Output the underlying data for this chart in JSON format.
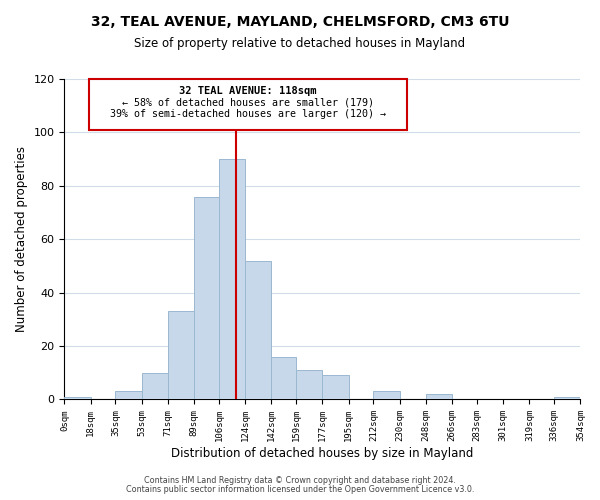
{
  "title": "32, TEAL AVENUE, MAYLAND, CHELMSFORD, CM3 6TU",
  "subtitle": "Size of property relative to detached houses in Mayland",
  "xlabel": "Distribution of detached houses by size in Mayland",
  "ylabel": "Number of detached properties",
  "bin_labels": [
    "0sqm",
    "18sqm",
    "35sqm",
    "53sqm",
    "71sqm",
    "89sqm",
    "106sqm",
    "124sqm",
    "142sqm",
    "159sqm",
    "177sqm",
    "195sqm",
    "212sqm",
    "230sqm",
    "248sqm",
    "266sqm",
    "283sqm",
    "301sqm",
    "319sqm",
    "336sqm",
    "354sqm"
  ],
  "bar_heights": [
    1,
    0,
    3,
    10,
    33,
    76,
    90,
    52,
    16,
    11,
    9,
    0,
    3,
    0,
    2,
    0,
    0,
    0,
    0,
    1
  ],
  "bar_color": "#c8d8eb",
  "bar_edge_color": "#9ab8d0",
  "property_line_x": 118,
  "property_line_label": "32 TEAL AVENUE: 118sqm",
  "annotation_line1": "← 58% of detached houses are smaller (179)",
  "annotation_line2": "39% of semi-detached houses are larger (120) →",
  "annotation_box_edge": "#cc0000",
  "vline_color": "#cc0000",
  "ylim": [
    0,
    120
  ],
  "yticks": [
    0,
    20,
    40,
    60,
    80,
    100,
    120
  ],
  "footer1": "Contains HM Land Registry data © Crown copyright and database right 2024.",
  "footer2": "Contains public sector information licensed under the Open Government Licence v3.0.",
  "bg_color": "#ffffff",
  "grid_color": "#d0dce8"
}
